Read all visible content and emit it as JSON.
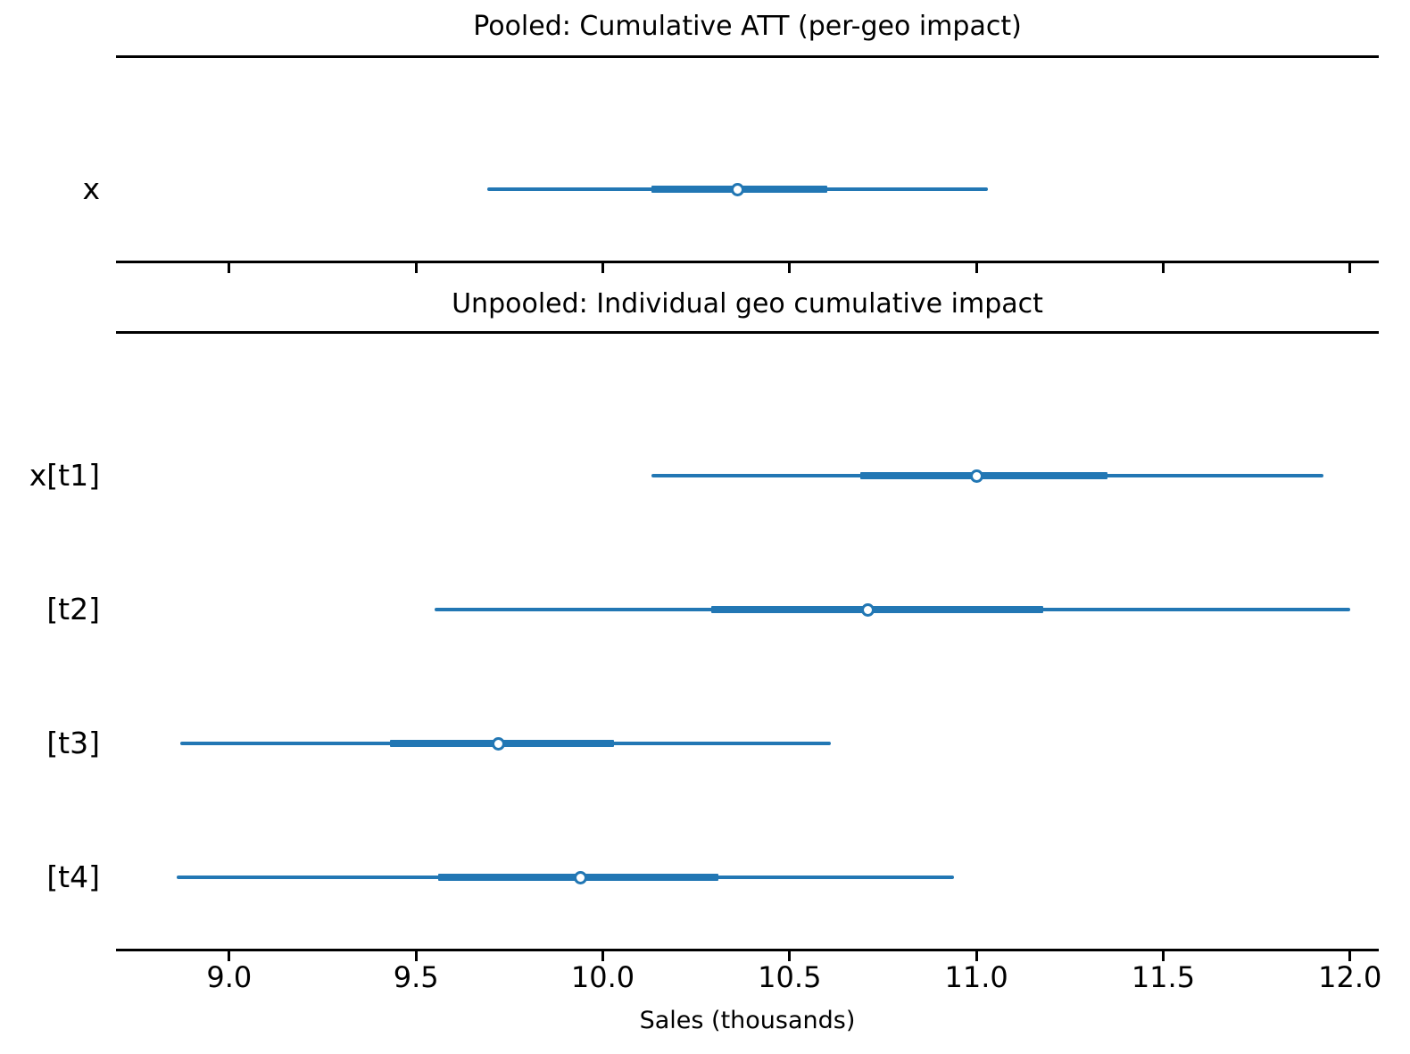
{
  "figure": {
    "xlabel": "Sales (thousands)"
  },
  "colors": {
    "interval_blue": "#2277b4",
    "marker_fill": "#ffffff",
    "axis_black": "#000000",
    "background": "#ffffff"
  },
  "chart_data": {
    "type": "forest",
    "orientation": "horizontal",
    "xlabel": "Sales (thousands)",
    "xlim": [
      8.697,
      12.077
    ],
    "xticks": [
      9.0,
      9.5,
      10.0,
      10.5,
      11.0,
      11.5,
      12.0
    ],
    "xtick_labels": [
      "9.0",
      "9.5",
      "10.0",
      "10.5",
      "11.0",
      "11.5",
      "12.0"
    ],
    "grid": false,
    "legend": false,
    "marker_style": "open-circle",
    "panels": [
      {
        "title": "Pooled: Cumulative ATT (per-geo impact)",
        "rows": [
          {
            "label": "x",
            "interval_outer": [
              9.69,
              11.03
            ],
            "interval_inner": [
              10.13,
              10.6
            ],
            "median": 10.36
          }
        ]
      },
      {
        "title": "Unpooled: Individual geo cumulative impact",
        "rows": [
          {
            "label": "x[t1]",
            "interval_outer": [
              10.13,
              11.93
            ],
            "interval_inner": [
              10.69,
              11.35
            ],
            "median": 11.0
          },
          {
            "label": "[t2]",
            "interval_outer": [
              9.55,
              12.0
            ],
            "interval_inner": [
              10.29,
              11.18
            ],
            "median": 10.71
          },
          {
            "label": "[t3]",
            "interval_outer": [
              8.87,
              10.61
            ],
            "interval_inner": [
              9.43,
              10.03
            ],
            "median": 9.72
          },
          {
            "label": "[t4]",
            "interval_outer": [
              8.86,
              10.94
            ],
            "interval_inner": [
              9.56,
              10.31
            ],
            "median": 9.94
          }
        ]
      }
    ]
  }
}
